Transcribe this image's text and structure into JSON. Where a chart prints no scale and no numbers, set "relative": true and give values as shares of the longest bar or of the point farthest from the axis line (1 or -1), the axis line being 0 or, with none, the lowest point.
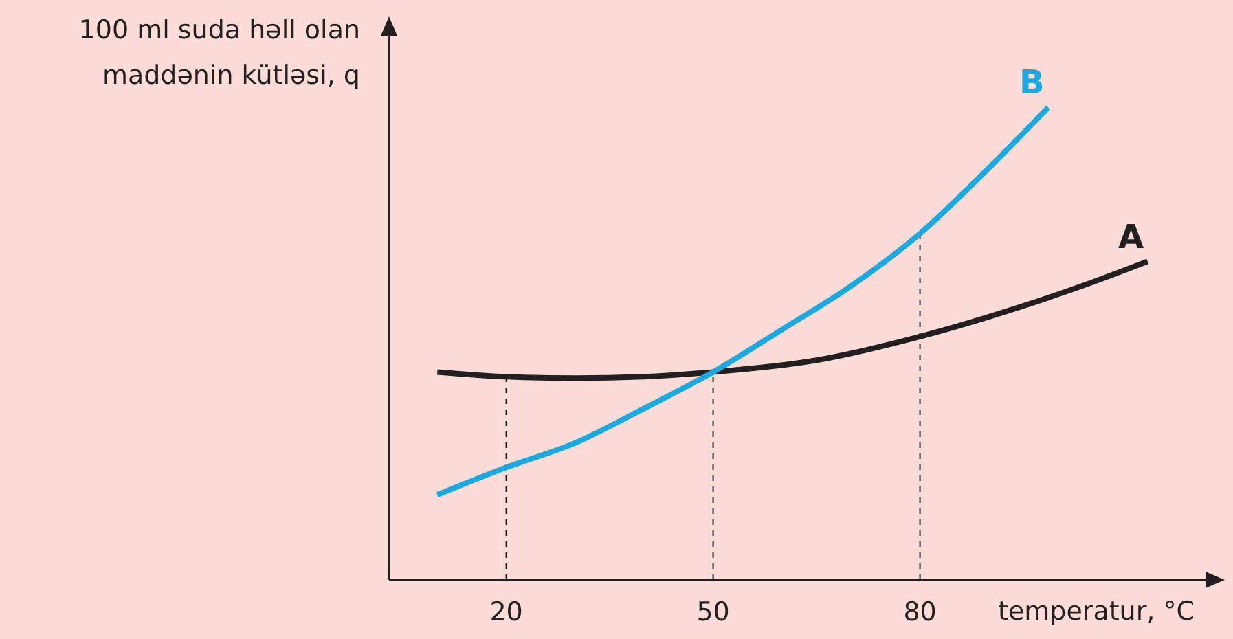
{
  "chart_data": {
    "type": "line",
    "relative": true,
    "xlabel": "temperatur, °C",
    "ylabel": "100 ml suda həll olan maddənin kütləsi, q",
    "xlim": [
      3,
      123
    ],
    "xticks": [
      20,
      50,
      80
    ],
    "marker": "none",
    "line_style": "solid",
    "ref_lines": [
      {
        "axis": "x",
        "value": 20,
        "label": null,
        "color": "#231f20",
        "line_style": "dashed"
      },
      {
        "axis": "x",
        "value": 50,
        "label": null,
        "color": "#231f20",
        "line_style": "dashed"
      },
      {
        "axis": "x",
        "value": 80,
        "label": null,
        "color": "#231f20",
        "line_style": "dashed"
      }
    ],
    "series": [
      {
        "name": "A",
        "color": "#231f20",
        "x": [
          10,
          20,
          30,
          40,
          50,
          65,
          80,
          95,
          105,
          113
        ],
        "values": [
          0.44,
          0.43,
          0.427,
          0.43,
          0.44,
          0.465,
          0.515,
          0.58,
          0.63,
          0.674
        ]
      },
      {
        "name": "B",
        "color": "#1ba9e1",
        "x": [
          10,
          20,
          30,
          40,
          50,
          60,
          70,
          80,
          90,
          98.6
        ],
        "values": [
          0.18,
          0.238,
          0.29,
          0.363,
          0.44,
          0.53,
          0.622,
          0.733,
          0.872,
          1
        ]
      }
    ]
  }
}
